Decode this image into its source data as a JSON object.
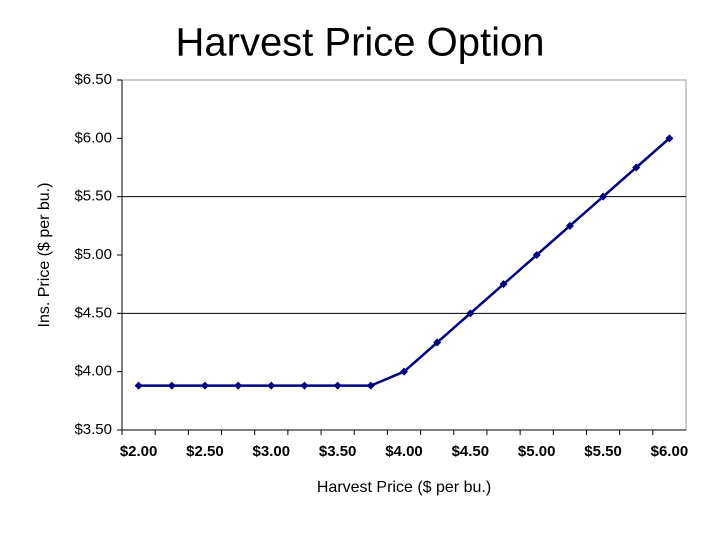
{
  "chart_data": {
    "type": "line",
    "title": "Harvest Price Option",
    "x_label": "Harvest Price ($ per bu.)",
    "y_label": "Ins. Price ($ per bu.)",
    "categories": [
      "$2.00",
      null,
      "$2.50",
      null,
      "$3.00",
      null,
      "$3.50",
      null,
      "$4.00",
      null,
      "$4.50",
      null,
      "$5.00",
      null,
      "$5.50",
      null,
      "$6.00"
    ],
    "series": [
      {
        "name": "Ins. Price",
        "color": "#000080",
        "values": [
          3.88,
          3.88,
          3.88,
          3.88,
          3.88,
          3.88,
          3.88,
          3.88,
          4.0,
          4.25,
          4.5,
          4.75,
          5.0,
          5.25,
          5.5,
          5.75,
          6.0
        ]
      }
    ],
    "ylim": [
      3.5,
      6.5
    ],
    "yticks": [
      {
        "value": 3.5,
        "label": "$3.50"
      },
      {
        "value": 4,
        "label": "$4.00"
      },
      {
        "value": 4.5,
        "label": "$4.50"
      },
      {
        "value": 5,
        "label": "$5.00"
      },
      {
        "value": 5.5,
        "label": "$5.50"
      },
      {
        "value": 6,
        "label": "$6.00"
      },
      {
        "value": 6.5,
        "label": "$6.50"
      }
    ],
    "grid_values": [
      4.5,
      5.5
    ]
  }
}
